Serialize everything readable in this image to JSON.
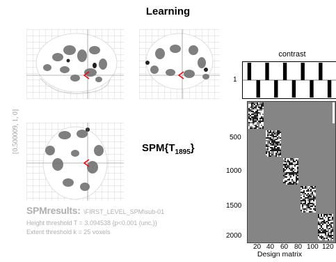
{
  "title": "Learning",
  "coordinates": "[0.500009, 1, 0]",
  "spm_label": {
    "main": "SPM{T",
    "sub": "1895",
    "close": "}"
  },
  "results": {
    "heading": "SPMresults:",
    "path": "\\FIRST_LEVEL_SPM\\sub-01",
    "height_threshold": "Height threshold T = 3.094538  {p<0.001 (unc.)}",
    "extent_threshold": "Extent threshold k = 25 voxels"
  },
  "contrast": {
    "title": "contrast",
    "tick": "1",
    "weights": [
      1,
      -1,
      1,
      -1,
      1,
      -1,
      1,
      -1,
      1,
      -1
    ]
  },
  "design_matrix": {
    "title": "Design matrix",
    "y_ticks": [
      "500",
      "1000",
      "1500",
      "2000"
    ],
    "x_ticks": [
      "20",
      "40",
      "60",
      "80",
      "100",
      "120"
    ],
    "background_color": "#858585"
  },
  "marker_color": "#e0101a"
}
